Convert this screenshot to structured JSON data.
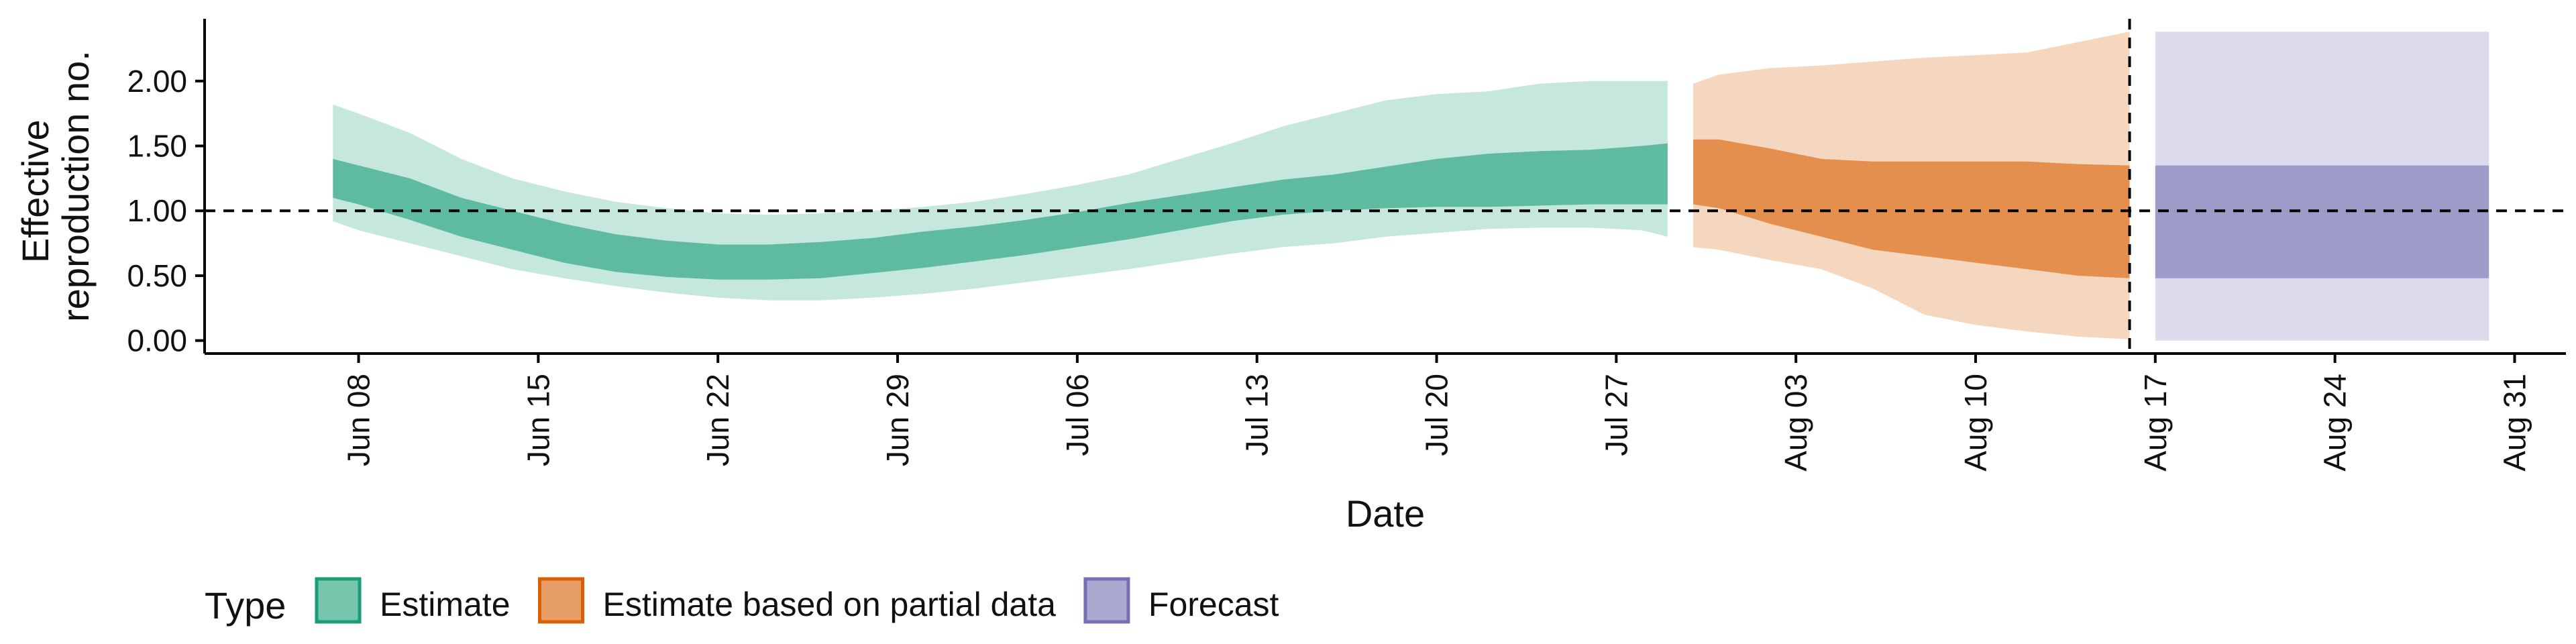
{
  "chart_data": {
    "type": "area",
    "xlabel": "Date",
    "ylabel_lines": [
      "Effective",
      "reproduction no."
    ],
    "ylim": [
      -0.1,
      2.48
    ],
    "y_ticks": [
      0.0,
      0.5,
      1.0,
      1.5,
      2.0
    ],
    "y_tick_labels": [
      "0.00",
      "0.50",
      "1.00",
      "1.50",
      "2.00"
    ],
    "x_ticks": [
      "2020-06-08",
      "2020-06-15",
      "2020-06-22",
      "2020-06-29",
      "2020-07-06",
      "2020-07-13",
      "2020-07-20",
      "2020-07-27",
      "2020-08-03",
      "2020-08-10",
      "2020-08-17",
      "2020-08-24",
      "2020-08-31"
    ],
    "x_tick_labels": [
      "Jun 08",
      "Jun 15",
      "Jun 22",
      "Jun 29",
      "Jul 06",
      "Jul 13",
      "Jul 20",
      "Jul 27",
      "Aug 03",
      "Aug 10",
      "Aug 17",
      "Aug 24",
      "Aug 31"
    ],
    "xlim": [
      "2020-06-02",
      "2020-09-02"
    ],
    "reference_line_y": 1.0,
    "reference_line_x": "2020-08-16",
    "grid": false,
    "legend": {
      "title": "Type",
      "position": "bottom-left",
      "entries": [
        "Estimate",
        "Estimate based on partial data",
        "Forecast"
      ]
    },
    "series": [
      {
        "name": "Estimate",
        "fill_color": "#1b9e77",
        "border_color": "#1b9e77",
        "x": [
          "2020-06-07",
          "2020-06-08",
          "2020-06-10",
          "2020-06-12",
          "2020-06-14",
          "2020-06-16",
          "2020-06-18",
          "2020-06-20",
          "2020-06-22",
          "2020-06-24",
          "2020-06-26",
          "2020-06-28",
          "2020-06-30",
          "2020-07-02",
          "2020-07-04",
          "2020-07-06",
          "2020-07-08",
          "2020-07-10",
          "2020-07-12",
          "2020-07-14",
          "2020-07-16",
          "2020-07-18",
          "2020-07-20",
          "2020-07-22",
          "2020-07-24",
          "2020-07-26",
          "2020-07-28",
          "2020-07-29"
        ],
        "lower_90": [
          0.92,
          0.85,
          0.75,
          0.65,
          0.55,
          0.48,
          0.42,
          0.37,
          0.33,
          0.31,
          0.31,
          0.33,
          0.36,
          0.4,
          0.45,
          0.5,
          0.55,
          0.61,
          0.67,
          0.72,
          0.75,
          0.8,
          0.83,
          0.86,
          0.87,
          0.87,
          0.85,
          0.8
        ],
        "upper_90": [
          1.82,
          1.75,
          1.6,
          1.4,
          1.25,
          1.15,
          1.07,
          1.02,
          0.98,
          0.97,
          0.98,
          1.0,
          1.03,
          1.07,
          1.13,
          1.2,
          1.28,
          1.4,
          1.52,
          1.65,
          1.75,
          1.85,
          1.9,
          1.92,
          1.98,
          2.0,
          2.0,
          2.0
        ],
        "lower_50": [
          1.1,
          1.05,
          0.93,
          0.8,
          0.7,
          0.6,
          0.53,
          0.49,
          0.47,
          0.47,
          0.48,
          0.52,
          0.56,
          0.61,
          0.66,
          0.72,
          0.78,
          0.85,
          0.92,
          0.97,
          1.0,
          1.02,
          1.03,
          1.03,
          1.04,
          1.05,
          1.05,
          1.05
        ],
        "upper_50": [
          1.4,
          1.35,
          1.25,
          1.1,
          1.0,
          0.9,
          0.82,
          0.77,
          0.74,
          0.74,
          0.76,
          0.79,
          0.84,
          0.88,
          0.93,
          0.99,
          1.06,
          1.12,
          1.18,
          1.24,
          1.28,
          1.34,
          1.4,
          1.44,
          1.46,
          1.47,
          1.5,
          1.52
        ]
      },
      {
        "name": "Estimate based on partial data",
        "fill_color": "#d95f02",
        "border_color": "#d95f02",
        "x": [
          "2020-07-30",
          "2020-07-31",
          "2020-08-02",
          "2020-08-04",
          "2020-08-06",
          "2020-08-08",
          "2020-08-10",
          "2020-08-12",
          "2020-08-14",
          "2020-08-16"
        ],
        "lower_90": [
          0.72,
          0.7,
          0.62,
          0.55,
          0.4,
          0.2,
          0.12,
          0.07,
          0.03,
          0.01
        ],
        "upper_90": [
          1.98,
          2.05,
          2.1,
          2.12,
          2.15,
          2.18,
          2.2,
          2.22,
          2.3,
          2.38
        ],
        "lower_50": [
          1.05,
          1.02,
          0.9,
          0.8,
          0.7,
          0.65,
          0.6,
          0.55,
          0.5,
          0.48
        ],
        "upper_50": [
          1.55,
          1.55,
          1.48,
          1.4,
          1.38,
          1.38,
          1.38,
          1.38,
          1.36,
          1.35
        ]
      },
      {
        "name": "Forecast",
        "fill_color": "#7570b3",
        "border_color": "#7570b3",
        "x": [
          "2020-08-17",
          "2020-08-30"
        ],
        "lower_90": [
          0.0,
          0.0
        ],
        "upper_90": [
          2.38,
          2.38
        ],
        "lower_50": [
          0.48,
          0.48
        ],
        "upper_50": [
          1.35,
          1.35
        ]
      }
    ]
  }
}
